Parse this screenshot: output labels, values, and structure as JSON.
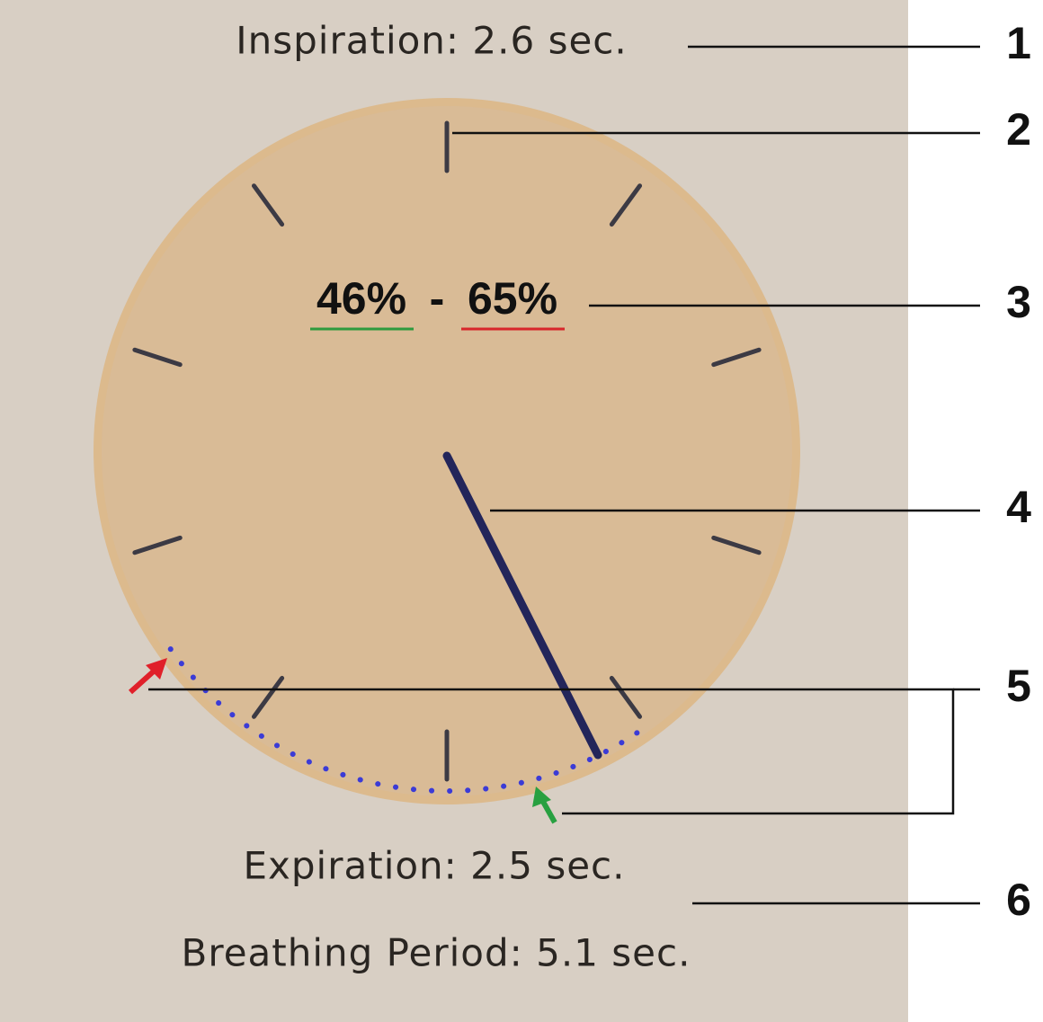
{
  "header": {
    "inspiration": "Inspiration: 2.6 sec."
  },
  "gauge": {
    "range_low": "46%",
    "separator": "-",
    "range_high": "65%"
  },
  "footer": {
    "expiration": "Expiration: 2.5 sec.",
    "breathing_period": "Breathing Period: 5.1 sec."
  },
  "callouts": [
    "1",
    "2",
    "3",
    "4",
    "5",
    "6"
  ]
}
